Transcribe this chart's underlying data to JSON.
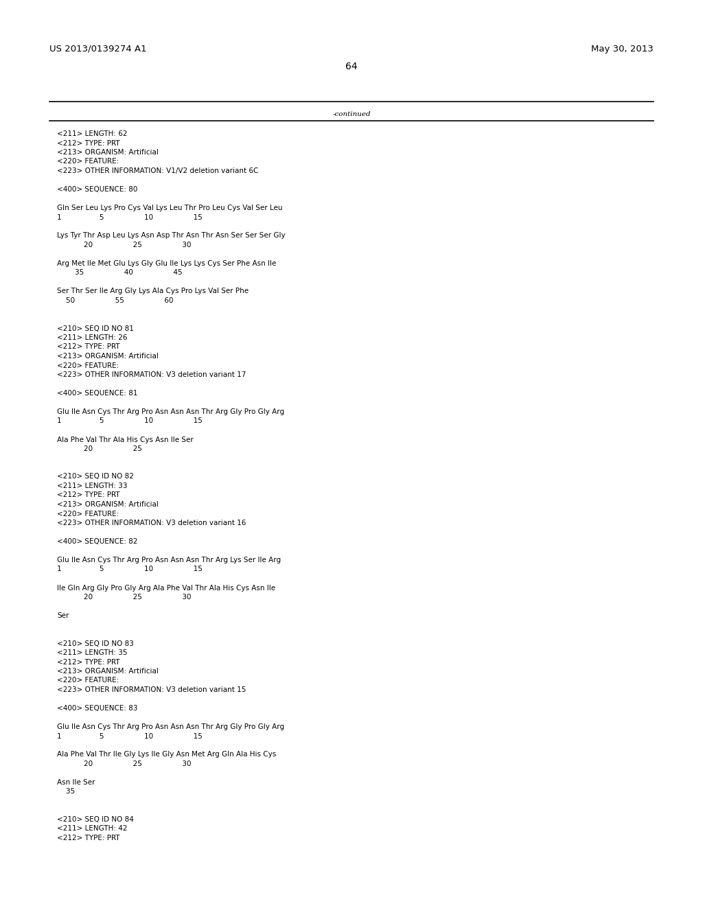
{
  "header_left": "US 2013/0139274 A1",
  "header_right": "May 30, 2013",
  "page_number": "64",
  "continued_text": "-continued",
  "background_color": "#ffffff",
  "text_color": "#000000",
  "font_size": 7.5,
  "header_font_size": 9.5,
  "page_num_font_size": 10,
  "mono_font": "Courier New",
  "serif_font": "DejaVu Serif",
  "sans_font": "DejaVu Sans",
  "lines": [
    "<211> LENGTH: 62",
    "<212> TYPE: PRT",
    "<213> ORGANISM: Artificial",
    "<220> FEATURE:",
    "<223> OTHER INFORMATION: V1/V2 deletion variant 6C",
    "",
    "<400> SEQUENCE: 80",
    "",
    "Gln Ser Leu Lys Pro Cys Val Lys Leu Thr Pro Leu Cys Val Ser Leu",
    "1                 5                  10                  15",
    "",
    "Lys Tyr Thr Asp Leu Lys Asn Asp Thr Asn Thr Asn Ser Ser Ser Gly",
    "            20                  25                  30",
    "",
    "Arg Met Ile Met Glu Lys Gly Glu Ile Lys Lys Cys Ser Phe Asn Ile",
    "        35                  40                  45",
    "",
    "Ser Thr Ser Ile Arg Gly Lys Ala Cys Pro Lys Val Ser Phe",
    "    50                  55                  60",
    "",
    "",
    "<210> SEQ ID NO 81",
    "<211> LENGTH: 26",
    "<212> TYPE: PRT",
    "<213> ORGANISM: Artificial",
    "<220> FEATURE:",
    "<223> OTHER INFORMATION: V3 deletion variant 17",
    "",
    "<400> SEQUENCE: 81",
    "",
    "Glu Ile Asn Cys Thr Arg Pro Asn Asn Asn Thr Arg Gly Pro Gly Arg",
    "1                 5                  10                  15",
    "",
    "Ala Phe Val Thr Ala His Cys Asn Ile Ser",
    "            20                  25",
    "",
    "",
    "<210> SEQ ID NO 82",
    "<211> LENGTH: 33",
    "<212> TYPE: PRT",
    "<213> ORGANISM: Artificial",
    "<220> FEATURE:",
    "<223> OTHER INFORMATION: V3 deletion variant 16",
    "",
    "<400> SEQUENCE: 82",
    "",
    "Glu Ile Asn Cys Thr Arg Pro Asn Asn Asn Thr Arg Lys Ser Ile Arg",
    "1                 5                  10                  15",
    "",
    "Ile Gln Arg Gly Pro Gly Arg Ala Phe Val Thr Ala His Cys Asn Ile",
    "            20                  25                  30",
    "",
    "Ser",
    "",
    "",
    "<210> SEQ ID NO 83",
    "<211> LENGTH: 35",
    "<212> TYPE: PRT",
    "<213> ORGANISM: Artificial",
    "<220> FEATURE:",
    "<223> OTHER INFORMATION: V3 deletion variant 15",
    "",
    "<400> SEQUENCE: 83",
    "",
    "Glu Ile Asn Cys Thr Arg Pro Asn Asn Asn Thr Arg Gly Pro Gly Arg",
    "1                 5                  10                  15",
    "",
    "Ala Phe Val Thr Ile Gly Lys Ile Gly Asn Met Arg Gln Ala His Cys",
    "            20                  25                  30",
    "",
    "Asn Ile Ser",
    "    35",
    "",
    "",
    "<210> SEQ ID NO 84",
    "<211> LENGTH: 42",
    "<212> TYPE: PRT"
  ]
}
